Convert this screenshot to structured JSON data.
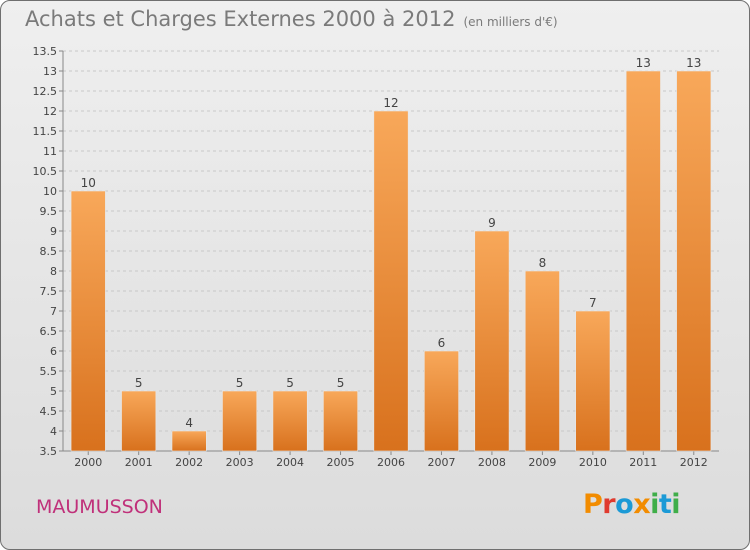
{
  "header": {
    "title": "Achats et Charges Externes 2000 à 2012",
    "unit": "(en milliers d'€)"
  },
  "footer": {
    "commune": "MAUMUSSON",
    "logo": "Proxiti"
  },
  "colors": {
    "bar_top": "#f8a85a",
    "bar_bottom": "#d8711d",
    "title": "#7a7a7a",
    "commune": "#c0307a",
    "logo_letters": [
      "#f28c00",
      "#e03b2f",
      "#1c9ad6",
      "#f28c00",
      "#3fae49",
      "#1c9ad6",
      "#3fae49"
    ]
  },
  "chart_data": {
    "type": "bar",
    "categories": [
      "2000",
      "2001",
      "2002",
      "2003",
      "2004",
      "2005",
      "2006",
      "2007",
      "2008",
      "2009",
      "2010",
      "2011",
      "2012"
    ],
    "values": [
      10,
      5,
      4,
      5,
      5,
      5,
      12,
      6,
      9,
      8,
      7,
      13,
      13
    ],
    "value_labels": [
      "10",
      "5",
      "4",
      "5",
      "5",
      "5",
      "12",
      "6",
      "9",
      "8",
      "7",
      "13",
      "13"
    ],
    "ylim": [
      3.5,
      13.5
    ],
    "yticks": [
      "3.5",
      "4",
      "4.5",
      "5",
      "5.5",
      "6",
      "6.5",
      "7",
      "7.5",
      "8",
      "8.5",
      "9",
      "9.5",
      "10",
      "10.5",
      "11",
      "11.5",
      "12",
      "12.5",
      "13",
      "13.5"
    ],
    "grid": true,
    "legend": "none"
  }
}
